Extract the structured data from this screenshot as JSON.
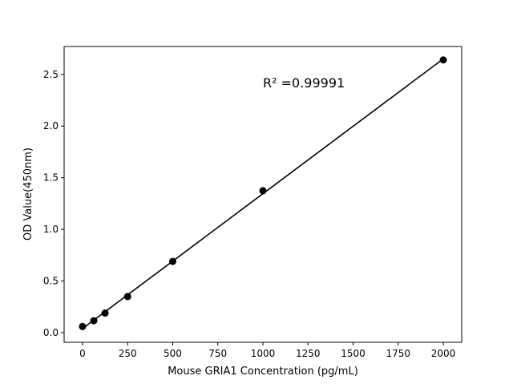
{
  "chart_data": {
    "type": "scatter",
    "title": "",
    "xlabel": "Mouse GRIA1 Concentration (pg/mL)",
    "ylabel": "OD Value(450nm)",
    "xlim": [
      -102,
      2102
    ],
    "ylim": [
      -0.093,
      2.77
    ],
    "xticks": [
      0,
      250,
      500,
      750,
      1000,
      1250,
      1500,
      1750,
      2000
    ],
    "xtick_labels": [
      "0",
      "250",
      "500",
      "750",
      "1000",
      "1250",
      "1500",
      "1750",
      "2000"
    ],
    "yticks": [
      0.0,
      0.5,
      1.0,
      1.5,
      2.0,
      2.5
    ],
    "ytick_labels": [
      "0.0",
      "0.5",
      "1.0",
      "1.5",
      "2.0",
      "2.5"
    ],
    "grid": false,
    "points": {
      "x": [
        0,
        62.5,
        125,
        250,
        500,
        1000,
        2000
      ],
      "y": [
        0.06,
        0.116,
        0.19,
        0.35,
        0.69,
        1.374,
        2.64
      ]
    },
    "fit_line": {
      "type": "linear",
      "color": "#000000"
    },
    "annotation": "R² =0.99991",
    "marker_color": "#000000"
  }
}
